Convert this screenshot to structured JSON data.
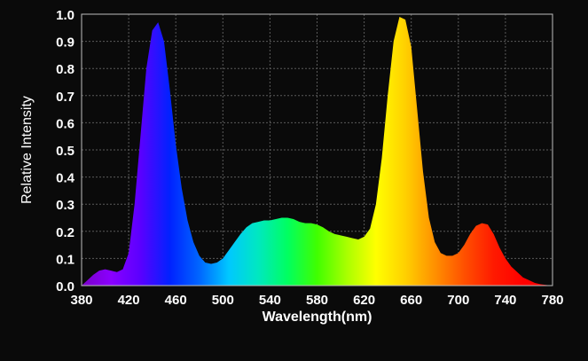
{
  "chart_data": {
    "type": "area",
    "title": "",
    "xlabel": "Wavelength(nm)",
    "ylabel": "Relative Intensity",
    "xlim": [
      380,
      780
    ],
    "ylim": [
      0,
      1.0
    ],
    "grid": true,
    "x_ticks": [
      "380",
      "420",
      "460",
      "500",
      "540",
      "580",
      "620",
      "660",
      "700",
      "740",
      "780"
    ],
    "y_ticks": [
      "0.0",
      "0.1",
      "0.2",
      "0.3",
      "0.4",
      "0.5",
      "0.6",
      "0.7",
      "0.8",
      "0.9",
      "1.0"
    ],
    "series": [
      {
        "fill": "visible-spectrum-gradient",
        "x": [
          380,
          385,
          390,
          395,
          400,
          405,
          410,
          415,
          420,
          425,
          430,
          435,
          440,
          445,
          450,
          455,
          460,
          465,
          470,
          475,
          480,
          485,
          490,
          495,
          500,
          505,
          510,
          515,
          520,
          525,
          530,
          535,
          540,
          545,
          550,
          555,
          560,
          565,
          570,
          575,
          580,
          585,
          590,
          595,
          600,
          605,
          610,
          615,
          620,
          625,
          630,
          635,
          640,
          645,
          650,
          655,
          660,
          665,
          670,
          675,
          680,
          685,
          690,
          695,
          700,
          705,
          710,
          715,
          720,
          725,
          730,
          735,
          740,
          745,
          750,
          755,
          760,
          765,
          770,
          775,
          780
        ],
        "y": [
          0.0,
          0.02,
          0.04,
          0.055,
          0.06,
          0.055,
          0.05,
          0.06,
          0.12,
          0.3,
          0.55,
          0.8,
          0.94,
          0.97,
          0.9,
          0.72,
          0.52,
          0.36,
          0.24,
          0.16,
          0.11,
          0.085,
          0.08,
          0.085,
          0.1,
          0.13,
          0.16,
          0.19,
          0.215,
          0.23,
          0.235,
          0.24,
          0.24,
          0.245,
          0.25,
          0.25,
          0.245,
          0.235,
          0.23,
          0.23,
          0.225,
          0.215,
          0.2,
          0.19,
          0.185,
          0.18,
          0.175,
          0.17,
          0.18,
          0.21,
          0.3,
          0.47,
          0.7,
          0.9,
          0.99,
          0.98,
          0.88,
          0.65,
          0.42,
          0.25,
          0.16,
          0.12,
          0.11,
          0.11,
          0.12,
          0.15,
          0.19,
          0.22,
          0.23,
          0.225,
          0.19,
          0.14,
          0.1,
          0.07,
          0.05,
          0.03,
          0.02,
          0.01,
          0.005,
          0.002,
          0.0
        ]
      }
    ]
  },
  "colors": {
    "background": "#0a0a0a",
    "grid": "#5a5a5a",
    "text": "#ffffff",
    "spectrum": [
      "#7a00c8",
      "#8a00ff",
      "#5a00ff",
      "#0022ff",
      "#0066ff",
      "#00c8ff",
      "#00e8c0",
      "#00ff60",
      "#40ff00",
      "#a8ff00",
      "#ffff00",
      "#ffd000",
      "#ff9000",
      "#ff5000",
      "#ff1a00",
      "#ff0000",
      "#ff0000"
    ]
  }
}
